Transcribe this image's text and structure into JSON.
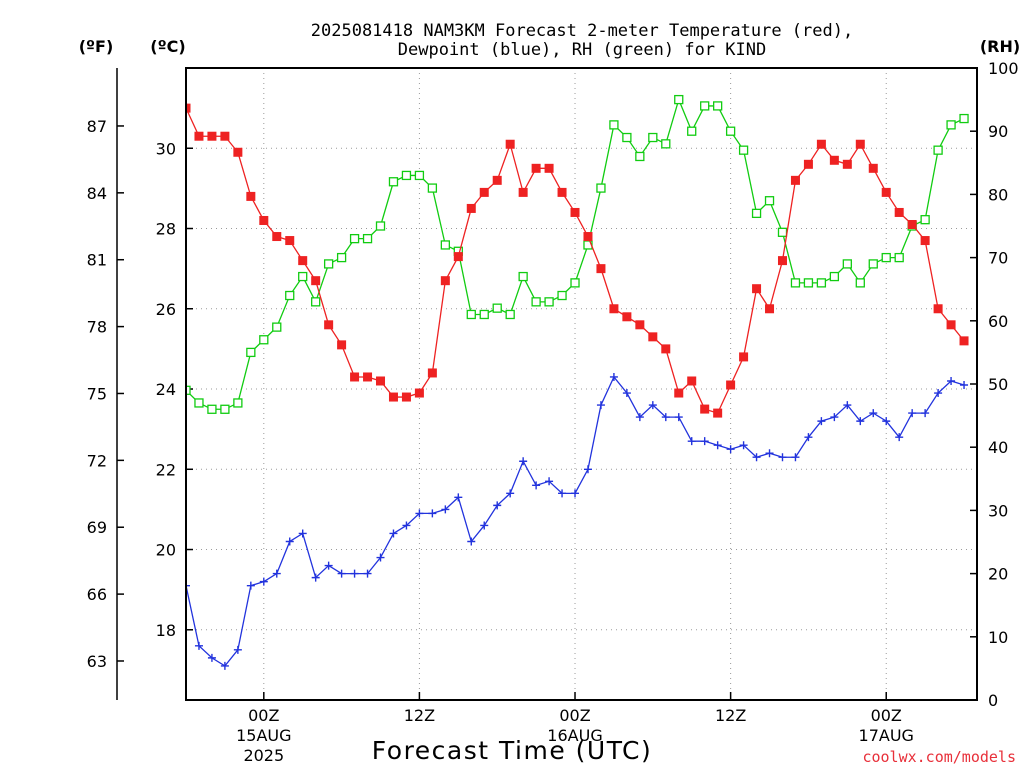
{
  "chart_data": {
    "type": "line",
    "title_line1": "2025081418 NAM3KM Forecast 2-meter Temperature (red),",
    "title_line2": "Dewpoint (blue), RH (green) for KIND",
    "xlabel": "Forecast Time (UTC)",
    "left_axis_f_label": "(ºF)",
    "left_axis_c_label": "(ºC)",
    "right_axis_label": "(RH)",
    "credit": "coolwx.com/models",
    "x_range_hours": [
      0,
      61
    ],
    "x_step_hours": 1,
    "x_ticks": [
      {
        "hour": 6,
        "line1": "00Z",
        "line2": "15AUG",
        "line3": "2025"
      },
      {
        "hour": 18,
        "line1": "12Z",
        "line2": "",
        "line3": ""
      },
      {
        "hour": 30,
        "line1": "00Z",
        "line2": "16AUG",
        "line3": ""
      },
      {
        "hour": 42,
        "line1": "12Z",
        "line2": "",
        "line3": ""
      },
      {
        "hour": 54,
        "line1": "00Z",
        "line2": "17AUG",
        "line3": ""
      }
    ],
    "celsius_range": [
      16.25,
      32.0
    ],
    "celsius_ticks": [
      "18",
      "20",
      "22",
      "24",
      "26",
      "28",
      "30"
    ],
    "fahrenheit_ticks": [
      "63",
      "66",
      "69",
      "72",
      "75",
      "78",
      "81",
      "84",
      "87"
    ],
    "rh_range": [
      0,
      100
    ],
    "rh_ticks": [
      "0",
      "10",
      "20",
      "30",
      "40",
      "50",
      "60",
      "70",
      "80",
      "90",
      "100"
    ],
    "grid": true,
    "colors": {
      "temperature": "#ee2222",
      "dewpoint": "#2233dd",
      "rh": "#11cc11"
    },
    "series": [
      {
        "name": "Temperature (red)",
        "units": "°C",
        "values": [
          31.0,
          30.3,
          30.3,
          30.3,
          29.9,
          28.8,
          28.2,
          27.8,
          27.7,
          27.2,
          26.7,
          25.6,
          25.1,
          24.3,
          24.3,
          24.2,
          23.8,
          23.8,
          23.9,
          24.4,
          26.7,
          27.3,
          28.5,
          28.9,
          29.2,
          30.1,
          28.9,
          29.5,
          29.5,
          28.9,
          28.4,
          27.8,
          27.0,
          26.0,
          25.8,
          25.6,
          25.3,
          25.0,
          23.9,
          24.2,
          23.5,
          23.4,
          24.1,
          24.8,
          26.5,
          26.0,
          27.2,
          29.2,
          29.6,
          30.1,
          29.7,
          29.6,
          30.1,
          29.5,
          28.9,
          28.4,
          28.1,
          27.7,
          26.0,
          25.6,
          25.2
        ]
      },
      {
        "name": "Dewpoint (blue)",
        "units": "°C",
        "values": [
          19.1,
          17.6,
          17.3,
          17.1,
          17.5,
          19.1,
          19.2,
          19.4,
          20.2,
          20.4,
          19.3,
          19.6,
          19.4,
          19.4,
          19.4,
          19.8,
          20.4,
          20.6,
          20.9,
          20.9,
          21.0,
          21.3,
          20.2,
          20.6,
          21.1,
          21.4,
          22.2,
          21.6,
          21.7,
          21.4,
          21.4,
          22.0,
          23.6,
          24.3,
          23.9,
          23.3,
          23.6,
          23.3,
          23.3,
          22.7,
          22.7,
          22.6,
          22.5,
          22.6,
          22.3,
          22.4,
          22.3,
          22.3,
          22.8,
          23.2,
          23.3,
          23.6,
          23.2,
          23.4,
          23.2,
          22.8,
          23.4,
          23.4,
          23.9,
          24.2,
          24.1
        ]
      },
      {
        "name": "RH (green)",
        "units": "%",
        "values": [
          49,
          47,
          46,
          46,
          47,
          55,
          57,
          59,
          64,
          67,
          63,
          69,
          70,
          73,
          73,
          75,
          82,
          83,
          83,
          81,
          72,
          71,
          61,
          61,
          62,
          61,
          67,
          63,
          63,
          64,
          66,
          72,
          81,
          91,
          89,
          86,
          89,
          88,
          95,
          90,
          94,
          94,
          90,
          87,
          77,
          79,
          74,
          66,
          66,
          66,
          67,
          69,
          66,
          69,
          70,
          70,
          75,
          76,
          87,
          91,
          92
        ]
      }
    ]
  }
}
